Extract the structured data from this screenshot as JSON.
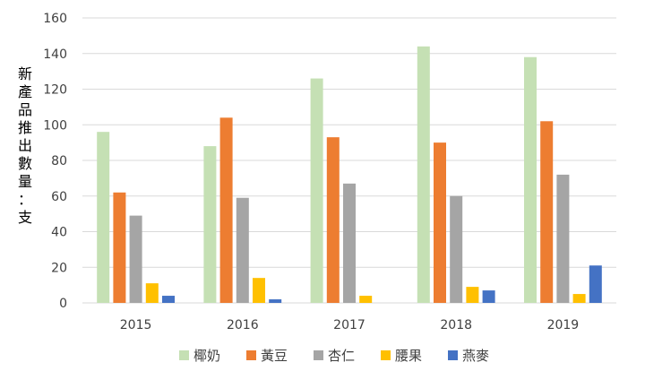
{
  "chart_data": {
    "type": "bar",
    "ylabel": "新產品推出數量：支",
    "categories": [
      "2015",
      "2016",
      "2017",
      "2018",
      "2019"
    ],
    "ylim": [
      0,
      160
    ],
    "yticks": [
      0,
      20,
      40,
      60,
      80,
      100,
      120,
      140,
      160
    ],
    "grid": true,
    "legend_position": "bottom",
    "series": [
      {
        "name": "椰奶",
        "color": "#c5e0b4",
        "values": [
          96,
          88,
          126,
          144,
          138
        ]
      },
      {
        "name": "黃豆",
        "color": "#ed7d31",
        "values": [
          62,
          104,
          93,
          90,
          102
        ]
      },
      {
        "name": "杏仁",
        "color": "#a5a5a5",
        "values": [
          49,
          59,
          67,
          60,
          72
        ]
      },
      {
        "name": "腰果",
        "color": "#ffc000",
        "values": [
          11,
          14,
          4,
          9,
          5
        ]
      },
      {
        "name": "燕麥",
        "color": "#4472c4",
        "values": [
          4,
          2,
          0,
          7,
          21
        ]
      }
    ]
  }
}
